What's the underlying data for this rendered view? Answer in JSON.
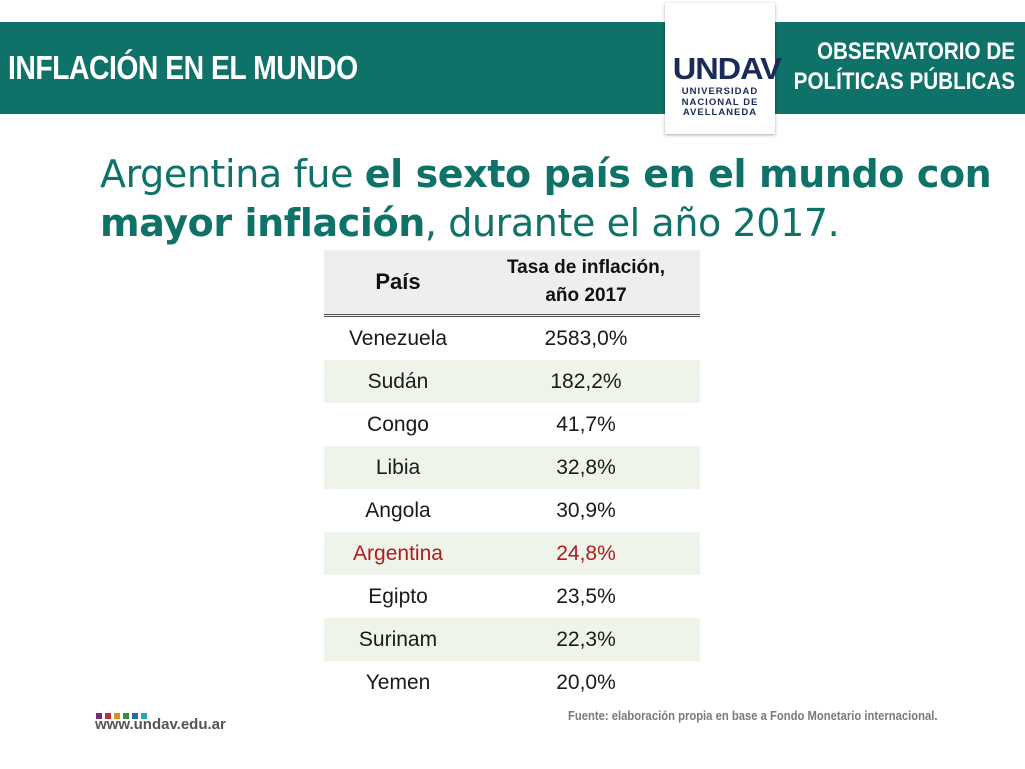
{
  "header": {
    "title": "INFLACIÓN EN EL MUNDO",
    "observatorio_line1": "OBSERVATORIO DE",
    "observatorio_line2": "POLÍTICAS PÚBLICAS",
    "bar_color": "#0f7268"
  },
  "logo": {
    "mark": "UNDAV",
    "line1": "UNIVERSIDAD",
    "line2": "NACIONAL DE",
    "line3": "AVELLANEDA"
  },
  "headline": {
    "part1": "Argentina fue ",
    "part2": "el sexto país en el mundo con mayor inflación",
    "part3": ", durante el año 2017."
  },
  "table": {
    "col1": "País",
    "col2_line1": "Tasa de inflación,",
    "col2_line2": "año 2017",
    "rows": [
      {
        "country": "Venezuela",
        "rate": "2583,0%"
      },
      {
        "country": "Sudán",
        "rate": "182,2%"
      },
      {
        "country": "Congo",
        "rate": "41,7%"
      },
      {
        "country": "Libia",
        "rate": "32,8%"
      },
      {
        "country": "Angola",
        "rate": "30,9%"
      },
      {
        "country": "Argentina",
        "rate": "24,8%",
        "highlight": true
      },
      {
        "country": "Egipto",
        "rate": "23,5%"
      },
      {
        "country": "Surinam",
        "rate": "22,3%"
      },
      {
        "country": "Yemen",
        "rate": "20,0%"
      }
    ],
    "highlight_color": "#b01c1c"
  },
  "footer": {
    "url": "www.undav.edu.ar",
    "source": "Fuente: elaboración propia en base a Fondo Monetario internacional.",
    "square_colors": [
      "#7b2d6f",
      "#c12f2f",
      "#e58a1f",
      "#3b8b3a",
      "#1f6fa8",
      "#2aa6a0"
    ]
  }
}
